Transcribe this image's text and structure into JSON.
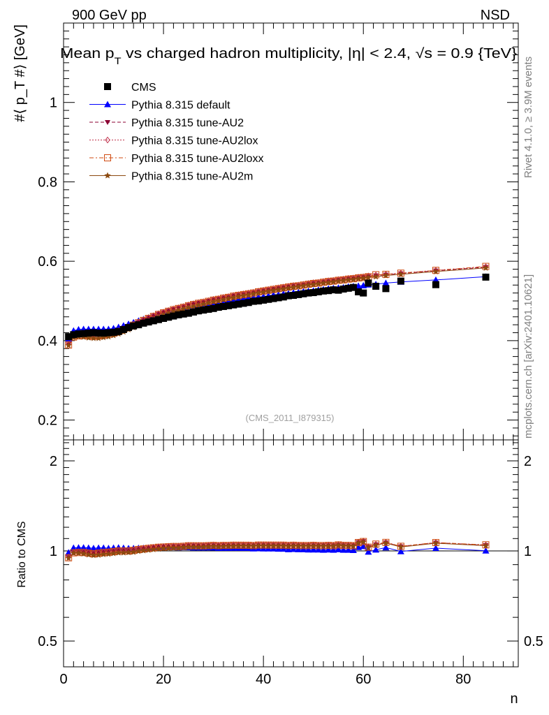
{
  "header": {
    "left": "900 GeV pp",
    "right": "NSD"
  },
  "title": "Mean p",
  "title_sub": "T",
  "title_rest": " vs charged hadron multiplicity, |η| < 2.4, √s = 0.9 {TeV}",
  "side_labels": {
    "rivet": "Rivet 4.1.0, ≥ 3.9M events",
    "mcplots": "mcplots.cern.ch [arXiv:2401.10621]"
  },
  "watermark": "(CMS_2011_I879315)",
  "chart_data": [
    {
      "type": "scatter",
      "panel": "main",
      "ylabel": "#⟨ p_T #⟩ [GeV]",
      "ylim": [
        0.15,
        1.2
      ],
      "yticks": [
        "0.2",
        "0.4",
        "0.6",
        "0.8",
        "1"
      ],
      "ytick_values": [
        0.2,
        0.4,
        0.6,
        0.8,
        1.0
      ],
      "xlim": [
        0,
        91
      ],
      "legend_position": "top-left",
      "series": [
        {
          "name": "CMS",
          "color": "#000000",
          "marker": "square-filled",
          "x": [
            1,
            2,
            3,
            4,
            5,
            6,
            7,
            8,
            9,
            10,
            11,
            12,
            13,
            14,
            15,
            16,
            17,
            18,
            19,
            20,
            21,
            22,
            23,
            24,
            25,
            26,
            27,
            28,
            29,
            30,
            31,
            32,
            33,
            34,
            35,
            36,
            37,
            38,
            39,
            40,
            41,
            42,
            43,
            44,
            45,
            46,
            47,
            48,
            49,
            50,
            51,
            52,
            53,
            54,
            55,
            56,
            57,
            58,
            59,
            60,
            61,
            62.5,
            64.5,
            67.5,
            74.5,
            84.5
          ],
          "y": [
            0.41,
            0.415,
            0.417,
            0.418,
            0.419,
            0.42,
            0.419,
            0.419,
            0.42,
            0.421,
            0.423,
            0.428,
            0.433,
            0.437,
            0.44,
            0.444,
            0.447,
            0.45,
            0.453,
            0.456,
            0.459,
            0.462,
            0.465,
            0.467,
            0.469,
            0.472,
            0.475,
            0.477,
            0.479,
            0.481,
            0.484,
            0.486,
            0.488,
            0.49,
            0.492,
            0.494,
            0.496,
            0.499,
            0.5,
            0.502,
            0.504,
            0.506,
            0.508,
            0.51,
            0.513,
            0.514,
            0.516,
            0.518,
            0.52,
            0.521,
            0.523,
            0.525,
            0.526,
            0.528,
            0.527,
            0.53,
            0.532,
            0.534,
            0.523,
            0.52,
            0.545,
            0.537,
            0.531,
            0.55,
            0.541,
            0.56
          ]
        },
        {
          "name": "Pythia 8.315 default",
          "color": "#0000ff",
          "marker": "triangle-up-filled",
          "line": "solid",
          "x": [
            1,
            2,
            3,
            4,
            5,
            6,
            7,
            8,
            9,
            10,
            11,
            12,
            13,
            14,
            15,
            16,
            17,
            18,
            19,
            20,
            21,
            22,
            23,
            24,
            25,
            26,
            27,
            28,
            29,
            30,
            31,
            32,
            33,
            34,
            35,
            36,
            37,
            38,
            39,
            40,
            41,
            42,
            43,
            44,
            45,
            46,
            47,
            48,
            49,
            50,
            51,
            52,
            53,
            54,
            55,
            56,
            57,
            58,
            59,
            60,
            61,
            62.5,
            64.5,
            67.5,
            74.5,
            84.5
          ],
          "y": [
            0.405,
            0.425,
            0.428,
            0.429,
            0.429,
            0.429,
            0.429,
            0.429,
            0.429,
            0.431,
            0.434,
            0.438,
            0.442,
            0.446,
            0.45,
            0.454,
            0.458,
            0.462,
            0.465,
            0.469,
            0.472,
            0.475,
            0.477,
            0.48,
            0.482,
            0.484,
            0.487,
            0.489,
            0.491,
            0.493,
            0.495,
            0.497,
            0.499,
            0.501,
            0.503,
            0.505,
            0.507,
            0.508,
            0.51,
            0.511,
            0.513,
            0.515,
            0.516,
            0.518,
            0.519,
            0.521,
            0.522,
            0.524,
            0.525,
            0.526,
            0.528,
            0.529,
            0.531,
            0.532,
            0.533,
            0.534,
            0.536,
            0.537,
            0.538,
            0.539,
            0.541,
            0.542,
            0.545,
            0.548,
            0.553,
            0.561
          ]
        },
        {
          "name": "Pythia 8.315 tune-AU2",
          "color": "#8b0032",
          "marker": "triangle-down-filled",
          "line": "dashed",
          "x": [
            1,
            2,
            3,
            4,
            5,
            6,
            7,
            8,
            9,
            10,
            11,
            12,
            13,
            14,
            15,
            16,
            17,
            18,
            19,
            20,
            21,
            22,
            23,
            24,
            25,
            26,
            27,
            28,
            29,
            30,
            31,
            32,
            33,
            34,
            35,
            36,
            37,
            38,
            39,
            40,
            41,
            42,
            43,
            44,
            45,
            46,
            47,
            48,
            49,
            50,
            51,
            52,
            53,
            54,
            55,
            56,
            57,
            58,
            59,
            60,
            61,
            62.5,
            64.5,
            67.5,
            74.5,
            84.5
          ],
          "y": [
            0.39,
            0.41,
            0.413,
            0.414,
            0.413,
            0.412,
            0.413,
            0.415,
            0.417,
            0.42,
            0.424,
            0.429,
            0.434,
            0.44,
            0.446,
            0.452,
            0.457,
            0.462,
            0.467,
            0.471,
            0.475,
            0.479,
            0.482,
            0.485,
            0.489,
            0.492,
            0.495,
            0.497,
            0.5,
            0.503,
            0.505,
            0.508,
            0.51,
            0.513,
            0.515,
            0.517,
            0.519,
            0.521,
            0.524,
            0.526,
            0.528,
            0.53,
            0.532,
            0.534,
            0.536,
            0.538,
            0.539,
            0.541,
            0.543,
            0.545,
            0.546,
            0.548,
            0.55,
            0.551,
            0.553,
            0.554,
            0.556,
            0.557,
            0.559,
            0.56,
            0.562,
            0.564,
            0.566,
            0.569,
            0.576,
            0.585
          ]
        },
        {
          "name": "Pythia 8.315 tune-AU2lox",
          "color": "#c0304a",
          "marker": "diamond-open",
          "line": "dotted",
          "x": [
            1,
            2,
            3,
            4,
            5,
            6,
            7,
            8,
            9,
            10,
            11,
            12,
            13,
            14,
            15,
            16,
            17,
            18,
            19,
            20,
            21,
            22,
            23,
            24,
            25,
            26,
            27,
            28,
            29,
            30,
            31,
            32,
            33,
            34,
            35,
            36,
            37,
            38,
            39,
            40,
            41,
            42,
            43,
            44,
            45,
            46,
            47,
            48,
            49,
            50,
            51,
            52,
            53,
            54,
            55,
            56,
            57,
            58,
            59,
            60,
            61,
            62.5,
            64.5,
            67.5,
            74.5,
            84.5
          ],
          "y": [
            0.391,
            0.411,
            0.414,
            0.415,
            0.414,
            0.413,
            0.414,
            0.416,
            0.418,
            0.421,
            0.425,
            0.43,
            0.435,
            0.441,
            0.447,
            0.453,
            0.458,
            0.463,
            0.468,
            0.472,
            0.476,
            0.48,
            0.483,
            0.486,
            0.49,
            0.493,
            0.496,
            0.498,
            0.501,
            0.504,
            0.506,
            0.509,
            0.511,
            0.514,
            0.516,
            0.518,
            0.52,
            0.522,
            0.525,
            0.527,
            0.529,
            0.531,
            0.533,
            0.535,
            0.537,
            0.539,
            0.54,
            0.542,
            0.544,
            0.546,
            0.547,
            0.549,
            0.551,
            0.552,
            0.554,
            0.555,
            0.557,
            0.558,
            0.56,
            0.561,
            0.563,
            0.565,
            0.567,
            0.57,
            0.577,
            0.586
          ]
        },
        {
          "name": "Pythia 8.315 tune-AU2loxx",
          "color": "#d04a10",
          "marker": "square-open",
          "line": "dashdot",
          "x": [
            1,
            2,
            3,
            4,
            5,
            6,
            7,
            8,
            9,
            10,
            11,
            12,
            13,
            14,
            15,
            16,
            17,
            18,
            19,
            20,
            21,
            22,
            23,
            24,
            25,
            26,
            27,
            28,
            29,
            30,
            31,
            32,
            33,
            34,
            35,
            36,
            37,
            38,
            39,
            40,
            41,
            42,
            43,
            44,
            45,
            46,
            47,
            48,
            49,
            50,
            51,
            52,
            53,
            54,
            55,
            56,
            57,
            58,
            59,
            60,
            61,
            62.5,
            64.5,
            67.5,
            74.5,
            84.5
          ],
          "y": [
            0.389,
            0.409,
            0.412,
            0.413,
            0.412,
            0.411,
            0.412,
            0.414,
            0.416,
            0.419,
            0.423,
            0.428,
            0.433,
            0.439,
            0.445,
            0.451,
            0.456,
            0.461,
            0.466,
            0.47,
            0.474,
            0.478,
            0.481,
            0.484,
            0.488,
            0.491,
            0.494,
            0.496,
            0.499,
            0.502,
            0.504,
            0.507,
            0.509,
            0.512,
            0.514,
            0.516,
            0.518,
            0.52,
            0.523,
            0.525,
            0.527,
            0.529,
            0.531,
            0.533,
            0.535,
            0.537,
            0.538,
            0.54,
            0.542,
            0.544,
            0.545,
            0.547,
            0.549,
            0.55,
            0.552,
            0.553,
            0.555,
            0.556,
            0.558,
            0.559,
            0.561,
            0.566,
            0.567,
            0.57,
            0.577,
            0.587
          ]
        },
        {
          "name": "Pythia 8.315 tune-AU2m",
          "color": "#8c4a10",
          "marker": "star-filled",
          "line": "solid",
          "x": [
            1,
            2,
            3,
            4,
            5,
            6,
            7,
            8,
            9,
            10,
            11,
            12,
            13,
            14,
            15,
            16,
            17,
            18,
            19,
            20,
            21,
            22,
            23,
            24,
            25,
            26,
            27,
            28,
            29,
            30,
            31,
            32,
            33,
            34,
            35,
            36,
            37,
            38,
            39,
            40,
            41,
            42,
            43,
            44,
            45,
            46,
            47,
            48,
            49,
            50,
            51,
            52,
            53,
            54,
            55,
            56,
            57,
            58,
            59,
            60,
            61,
            62.5,
            64.5,
            67.5,
            74.5,
            84.5
          ],
          "y": [
            0.388,
            0.408,
            0.41,
            0.409,
            0.407,
            0.406,
            0.406,
            0.408,
            0.41,
            0.413,
            0.417,
            0.422,
            0.428,
            0.433,
            0.439,
            0.445,
            0.45,
            0.455,
            0.46,
            0.465,
            0.469,
            0.473,
            0.476,
            0.48,
            0.483,
            0.486,
            0.489,
            0.492,
            0.495,
            0.498,
            0.5,
            0.503,
            0.506,
            0.508,
            0.511,
            0.513,
            0.515,
            0.518,
            0.52,
            0.522,
            0.524,
            0.526,
            0.528,
            0.53,
            0.532,
            0.534,
            0.536,
            0.538,
            0.54,
            0.541,
            0.543,
            0.545,
            0.546,
            0.548,
            0.55,
            0.551,
            0.553,
            0.554,
            0.556,
            0.557,
            0.559,
            0.561,
            0.564,
            0.567,
            0.574,
            0.583
          ]
        }
      ]
    },
    {
      "type": "scatter",
      "panel": "ratio",
      "ylabel": "Ratio to CMS",
      "scale": "log",
      "ylim": [
        0.41,
        2.35
      ],
      "yticks": [
        "0.5",
        "1",
        "2"
      ],
      "ytick_values": [
        0.5,
        1,
        2
      ],
      "xlabel": "n",
      "xlim": [
        0,
        91
      ],
      "xticks": [
        "0",
        "20",
        "40",
        "60",
        "80"
      ],
      "xtick_values": [
        0,
        20,
        40,
        60,
        80
      ],
      "reference_line": 1
    }
  ]
}
